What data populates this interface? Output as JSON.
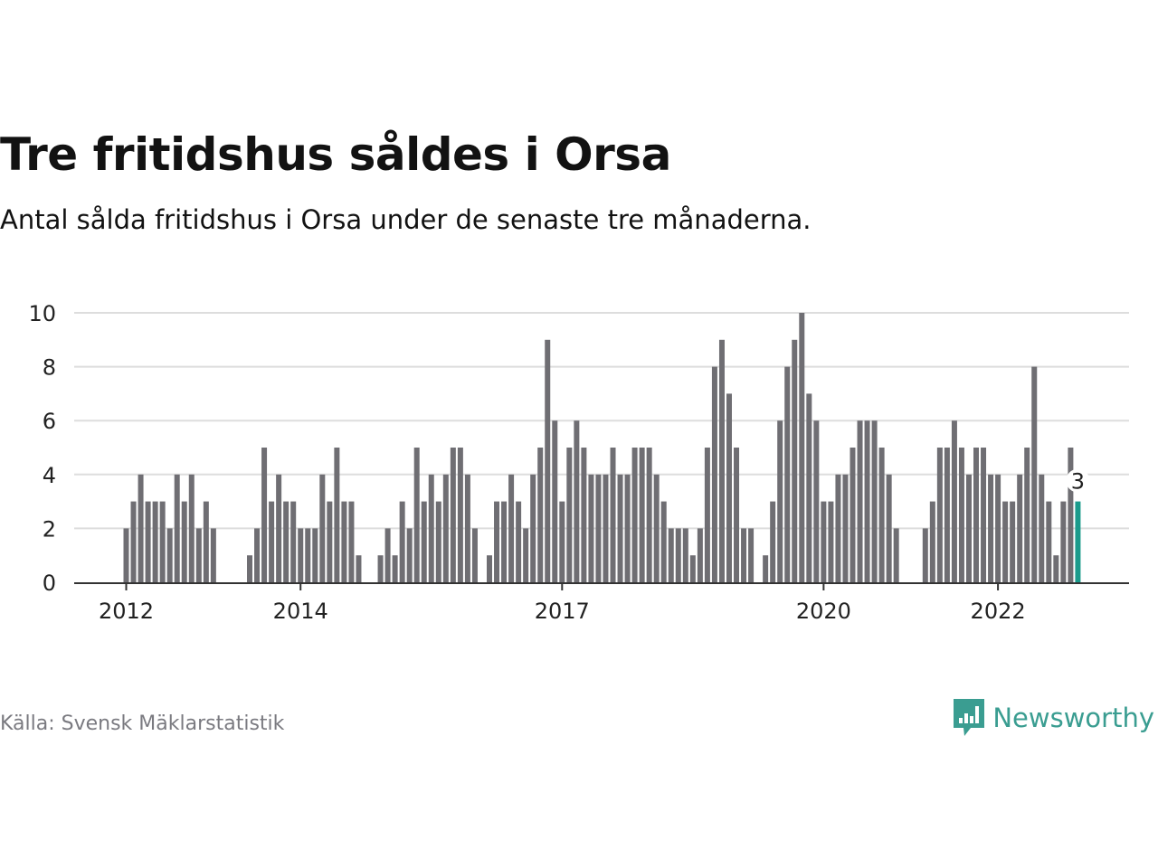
{
  "header": {
    "title": "Tre fritidshus såldes i Orsa",
    "subtitle": "Antal sålda fritidshus i Orsa under de senaste tre månaderna."
  },
  "footer": {
    "source": "Källa: Svensk Mäklarstatistik",
    "brand": "Newsworthy",
    "brand_icon": "newsworthy-logo-icon"
  },
  "colors": {
    "bar": "#6f6e73",
    "highlight": "#1a9b8c",
    "grid": "#dddddd",
    "axis": "#333333",
    "brand": "#3a9d91"
  },
  "chart_data": {
    "type": "bar",
    "title": "Tre fritidshus såldes i Orsa",
    "subtitle": "Antal sålda fritidshus i Orsa under de senaste tre månaderna.",
    "xlabel": "",
    "ylabel": "",
    "ylim": [
      0,
      10
    ],
    "yticks": [
      0,
      2,
      4,
      6,
      8,
      10
    ],
    "grid": true,
    "x_tick_labels": [
      "2012",
      "2014",
      "2017",
      "2020",
      "2022"
    ],
    "x_tick_indices": [
      0,
      24,
      60,
      96,
      120
    ],
    "x_start": "2012-01",
    "x_step": "month",
    "values": [
      2,
      3,
      4,
      3,
      3,
      3,
      2,
      4,
      3,
      4,
      2,
      3,
      2,
      null,
      null,
      null,
      null,
      1,
      2,
      5,
      3,
      4,
      3,
      3,
      2,
      2,
      2,
      4,
      3,
      5,
      3,
      3,
      1,
      null,
      null,
      1,
      2,
      1,
      3,
      2,
      5,
      3,
      4,
      3,
      4,
      5,
      5,
      4,
      2,
      null,
      1,
      3,
      3,
      4,
      3,
      2,
      4,
      5,
      9,
      6,
      3,
      5,
      6,
      5,
      4,
      4,
      4,
      5,
      4,
      4,
      5,
      5,
      5,
      4,
      3,
      2,
      2,
      2,
      1,
      2,
      5,
      8,
      9,
      7,
      5,
      2,
      2,
      null,
      1,
      3,
      6,
      8,
      9,
      10,
      7,
      6,
      3,
      3,
      4,
      4,
      5,
      6,
      6,
      6,
      5,
      4,
      2,
      null,
      null,
      null,
      2,
      3,
      5,
      5,
      6,
      5,
      4,
      5,
      5,
      4,
      4,
      3,
      3,
      4,
      5,
      8,
      4,
      3,
      1,
      3,
      5,
      3
    ],
    "highlight_index": 131,
    "highlight_label": "3"
  }
}
